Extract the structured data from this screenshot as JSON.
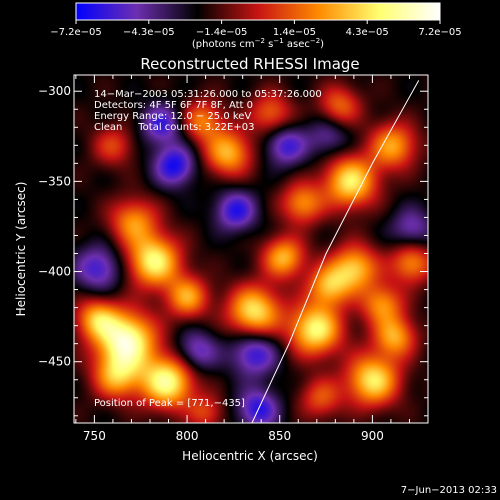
{
  "chart_data": {
    "type": "heatmap",
    "title": "Reconstructed RHESSI Image",
    "xlabel": "Heliocentric X (arcsec)",
    "ylabel": "Heliocentric Y (arcsec)",
    "xlim": [
      739,
      930
    ],
    "ylim": [
      -484,
      -291
    ],
    "x_ticks": [
      750,
      800,
      850,
      900
    ],
    "y_ticks": [
      -450,
      -400,
      -350,
      -300
    ],
    "x_tick_labels": [
      "750",
      "800",
      "850",
      "900"
    ],
    "y_tick_labels": [
      "−450",
      "−400",
      "−350",
      "−300"
    ],
    "colorbar": {
      "range": [
        -7.2e-05,
        7.2e-05
      ],
      "tick_labels": [
        "−7.2e−05",
        "−4.3e−05",
        "−1.4e−05",
        "1.4e−05",
        "4.3e−05",
        "7.2e−05"
      ],
      "units": {
        "prefix": "(photons cm",
        "e1": "−2",
        "mid1": " s",
        "e2": "−1",
        "mid2": " asec",
        "e3": "−2",
        "suffix": ")"
      },
      "colors": [
        "#0000ff",
        "#6d2fb0",
        "#000000",
        "#c81414",
        "#ff8a00",
        "#ffff70",
        "#ffffff"
      ]
    },
    "info_lines": [
      "14−Mar−2003 05:31:26.000 to 05:37:26.000",
      "Detectors: 4F 5F 6F 7F 8F, Att 0",
      "Energy Range: 12.0 − 25.0 keV",
      "Clean     Total counts: 3.22E+03"
    ],
    "peak_label": "Position of Peak = [771,−435]",
    "peak_position": [
      771,
      -435
    ],
    "limb_curve": [
      [
        835,
        -484
      ],
      [
        855,
        -440
      ],
      [
        875,
        -390
      ],
      [
        900,
        -340
      ],
      [
        925,
        -294
      ]
    ],
    "blobs": [
      {
        "x": 767,
        "y": -438,
        "a": 1.0,
        "s": 11
      },
      {
        "x": 789,
        "y": -461,
        "a": 0.9,
        "s": 10
      },
      {
        "x": 762,
        "y": -458,
        "a": 0.6,
        "s": 9
      },
      {
        "x": 751,
        "y": -426,
        "a": 0.6,
        "s": 8
      },
      {
        "x": 782,
        "y": -394,
        "a": 0.85,
        "s": 10
      },
      {
        "x": 771,
        "y": -372,
        "a": 0.55,
        "s": 9
      },
      {
        "x": 800,
        "y": -414,
        "a": 0.6,
        "s": 8
      },
      {
        "x": 836,
        "y": -422,
        "a": 0.8,
        "s": 10
      },
      {
        "x": 869,
        "y": -432,
        "a": 0.85,
        "s": 10
      },
      {
        "x": 876,
        "y": -408,
        "a": 0.6,
        "s": 8
      },
      {
        "x": 900,
        "y": -460,
        "a": 0.8,
        "s": 10
      },
      {
        "x": 912,
        "y": -436,
        "a": 0.6,
        "s": 8
      },
      {
        "x": 890,
        "y": -398,
        "a": 0.7,
        "s": 9
      },
      {
        "x": 905,
        "y": -418,
        "a": 0.55,
        "s": 8
      },
      {
        "x": 852,
        "y": -392,
        "a": 0.65,
        "s": 8
      },
      {
        "x": 862,
        "y": -362,
        "a": 0.55,
        "s": 8
      },
      {
        "x": 888,
        "y": -350,
        "a": 0.8,
        "s": 10
      },
      {
        "x": 911,
        "y": -330,
        "a": 0.6,
        "s": 9
      },
      {
        "x": 822,
        "y": -334,
        "a": 0.65,
        "s": 9
      },
      {
        "x": 808,
        "y": -316,
        "a": 0.5,
        "s": 8
      },
      {
        "x": 845,
        "y": -312,
        "a": 0.45,
        "s": 8
      },
      {
        "x": 882,
        "y": -308,
        "a": 0.45,
        "s": 8
      },
      {
        "x": 921,
        "y": -395,
        "a": 0.55,
        "s": 8
      },
      {
        "x": 760,
        "y": -330,
        "a": 0.35,
        "s": 8
      },
      {
        "x": 810,
        "y": -478,
        "a": 0.35,
        "s": 7
      },
      {
        "x": 872,
        "y": -470,
        "a": 0.4,
        "s": 8
      },
      {
        "x": 793,
        "y": -341,
        "a": -0.55,
        "s": 8
      },
      {
        "x": 826,
        "y": -366,
        "a": -0.5,
        "s": 8
      },
      {
        "x": 786,
        "y": -318,
        "a": -0.45,
        "s": 8
      },
      {
        "x": 836,
        "y": -445,
        "a": -0.5,
        "s": 9
      },
      {
        "x": 853,
        "y": -330,
        "a": -0.45,
        "s": 8
      },
      {
        "x": 805,
        "y": -444,
        "a": -0.4,
        "s": 8
      },
      {
        "x": 838,
        "y": -476,
        "a": -0.5,
        "s": 8
      },
      {
        "x": 752,
        "y": -398,
        "a": -0.45,
        "s": 9
      },
      {
        "x": 876,
        "y": -325,
        "a": -0.3,
        "s": 8
      },
      {
        "x": 921,
        "y": -376,
        "a": -0.35,
        "s": 8
      }
    ]
  },
  "timestamp": "7−Jun−2013 02:33"
}
